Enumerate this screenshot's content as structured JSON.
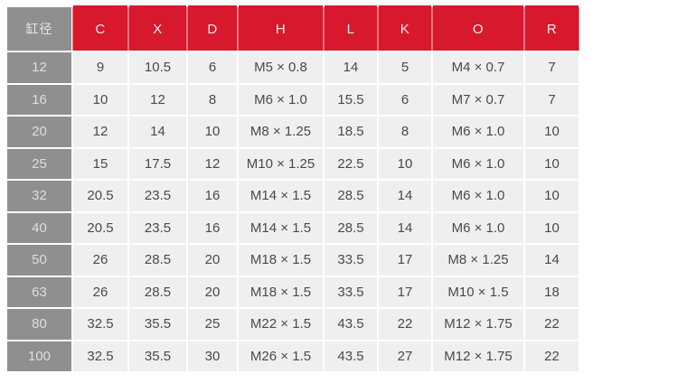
{
  "colors": {
    "accent_red": "#d7182d",
    "bore_column_gray": "#8f8f8f",
    "cell_background": "#efefef",
    "page_background": "#ffffff"
  },
  "table": {
    "bore_header": "缸径",
    "columns": [
      "C",
      "X",
      "D",
      "H",
      "L",
      "K",
      "O",
      "R"
    ],
    "rows": [
      {
        "bore": "12",
        "values": [
          "9",
          "10.5",
          "6",
          "M5 × 0.8",
          "14",
          "5",
          "M4 × 0.7",
          "7"
        ]
      },
      {
        "bore": "16",
        "values": [
          "10",
          "12",
          "8",
          "M6 × 1.0",
          "15.5",
          "6",
          "M7 × 0.7",
          "7"
        ]
      },
      {
        "bore": "20",
        "values": [
          "12",
          "14",
          "10",
          "M8 × 1.25",
          "18.5",
          "8",
          "M6 × 1.0",
          "10"
        ]
      },
      {
        "bore": "25",
        "values": [
          "15",
          "17.5",
          "12",
          "M10 × 1.25",
          "22.5",
          "10",
          "M6 × 1.0",
          "10"
        ]
      },
      {
        "bore": "32",
        "values": [
          "20.5",
          "23.5",
          "16",
          "M14 × 1.5",
          "28.5",
          "14",
          "M6 × 1.0",
          "10"
        ]
      },
      {
        "bore": "40",
        "values": [
          "20.5",
          "23.5",
          "16",
          "M14 × 1.5",
          "28.5",
          "14",
          "M6 × 1.0",
          "10"
        ]
      },
      {
        "bore": "50",
        "values": [
          "26",
          "28.5",
          "20",
          "M18 × 1.5",
          "33.5",
          "17",
          "M8 × 1.25",
          "14"
        ]
      },
      {
        "bore": "63",
        "values": [
          "26",
          "28.5",
          "20",
          "M18 × 1.5",
          "33.5",
          "17",
          "M10 × 1.5",
          "18"
        ]
      },
      {
        "bore": "80",
        "values": [
          "32.5",
          "35.5",
          "25",
          "M22 × 1.5",
          "43.5",
          "22",
          "M12 × 1.75",
          "22"
        ]
      },
      {
        "bore": "100",
        "values": [
          "32.5",
          "35.5",
          "30",
          "M26 × 1.5",
          "43.5",
          "27",
          "M12 × 1.75",
          "22"
        ]
      }
    ]
  }
}
